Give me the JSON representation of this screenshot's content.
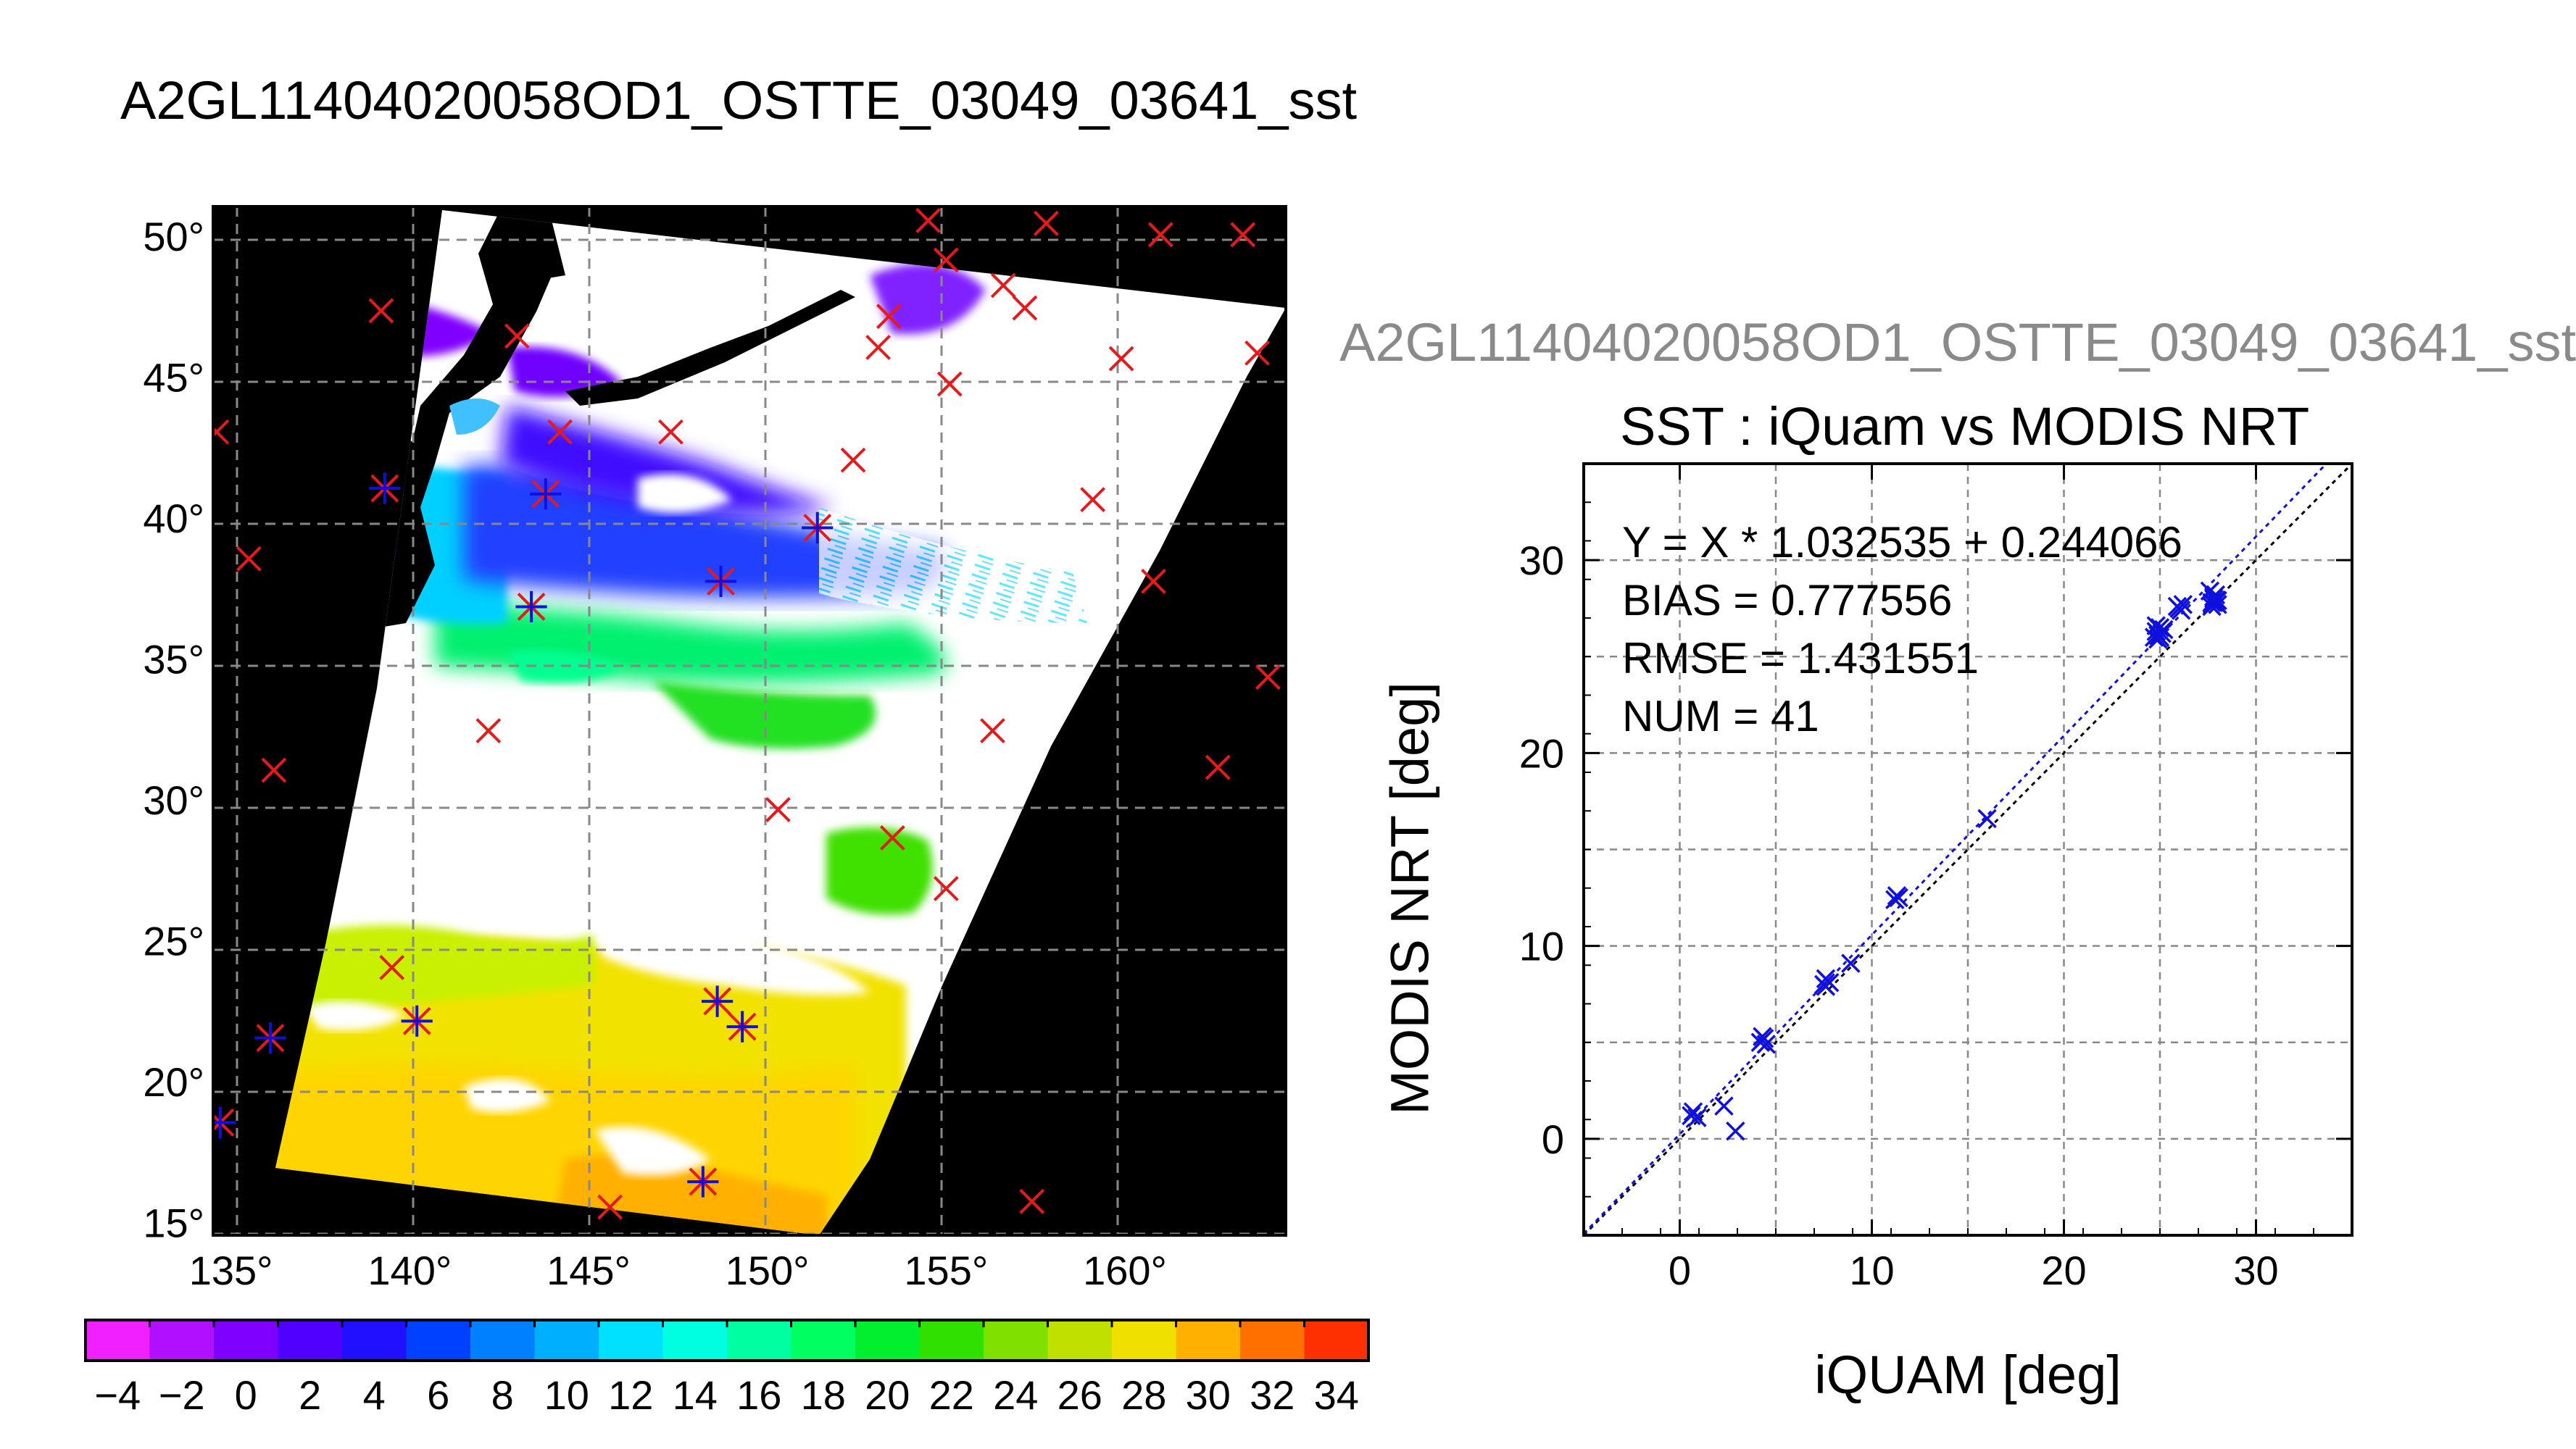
{
  "page_title": "A2GL11404020058OD1_OSTTE_03049_03641_sst",
  "scatter_window_title": "A2GL11404020058OD1_OSTTE_03049_03641_sst",
  "colors": {
    "marker_red": "#e41a1c",
    "marker_blue": "#1010dd",
    "map_background": "#000000",
    "cloud": "#ffffff",
    "grid": "#888888"
  },
  "chart_data": [
    {
      "type": "heatmap",
      "kind": "sst-map",
      "lon_ticks": [
        "135°",
        "140°",
        "145°",
        "150°",
        "155°",
        "160°"
      ],
      "lat_ticks": [
        "15°",
        "20°",
        "25°",
        "30°",
        "35°",
        "40°",
        "45°",
        "50°"
      ],
      "xlim": [
        134.5,
        164.5
      ],
      "ylim": [
        14.5,
        51.0
      ],
      "grid": true,
      "colorbar": {
        "range": [
          -5,
          35
        ],
        "tick_labels": [
          "−4",
          "−2",
          "0",
          "2",
          "4",
          "6",
          "8",
          "10",
          "12",
          "14",
          "16",
          "18",
          "20",
          "22",
          "24",
          "26",
          "28",
          "30",
          "32",
          "34"
        ],
        "tick_values": [
          -4,
          -2,
          0,
          2,
          4,
          6,
          8,
          10,
          12,
          14,
          16,
          18,
          20,
          22,
          24,
          26,
          28,
          30,
          32,
          34
        ],
        "colors": [
          "#f020ff",
          "#b010ff",
          "#8000ff",
          "#5000ff",
          "#2010ff",
          "#0040ff",
          "#0080ff",
          "#00b0ff",
          "#00e0ff",
          "#00ffe0",
          "#00ffa0",
          "#00ff60",
          "#00f030",
          "#30e000",
          "#80e000",
          "#c0e000",
          "#f0e000",
          "#ffb000",
          "#ff7000",
          "#ff3000"
        ]
      },
      "red_x_markers": [
        [
          134.6,
          43.0
        ],
        [
          135.5,
          38.5
        ],
        [
          136.2,
          31.0
        ],
        [
          139.2,
          47.3
        ],
        [
          139.5,
          24.0
        ],
        [
          142.2,
          32.4
        ],
        [
          144.2,
          43.0
        ],
        [
          147.3,
          43.0
        ],
        [
          150.3,
          29.6
        ],
        [
          152.4,
          42.0
        ],
        [
          153.1,
          46.0
        ],
        [
          153.4,
          47.1
        ],
        [
          153.5,
          28.6
        ],
        [
          154.5,
          50.5
        ],
        [
          155.0,
          26.8
        ],
        [
          155.1,
          44.7
        ],
        [
          156.3,
          32.4
        ],
        [
          156.6,
          48.2
        ],
        [
          157.2,
          47.4
        ],
        [
          157.4,
          15.7
        ],
        [
          157.8,
          50.4
        ],
        [
          159.1,
          40.6
        ],
        [
          159.9,
          45.6
        ],
        [
          160.8,
          37.7
        ],
        [
          161.0,
          50.0
        ],
        [
          162.6,
          31.1
        ],
        [
          163.3,
          50.0
        ],
        [
          163.7,
          45.8
        ],
        [
          164.0,
          34.3
        ],
        [
          145.6,
          15.5
        ],
        [
          155.0,
          49.1
        ],
        [
          143.0,
          46.4
        ]
      ],
      "blue_star_markers": [
        [
          134.7,
          18.5
        ],
        [
          136.1,
          21.5
        ],
        [
          139.3,
          41.0
        ],
        [
          140.2,
          22.1
        ],
        [
          143.4,
          36.8
        ],
        [
          143.8,
          40.8
        ],
        [
          148.2,
          16.4
        ],
        [
          148.6,
          22.8
        ],
        [
          148.7,
          37.7
        ],
        [
          149.3,
          21.9
        ],
        [
          151.4,
          39.6
        ]
      ]
    },
    {
      "type": "scatter",
      "title": "SST : iQuam vs MODIS NRT",
      "xlabel": "iQUAM [deg]",
      "ylabel": "MODIS NRT [deg]",
      "xlim": [
        -5,
        35
      ],
      "ylim": [
        -5,
        35
      ],
      "x_ticks": [
        0,
        10,
        20,
        30
      ],
      "y_ticks": [
        0,
        10,
        20,
        30
      ],
      "grid": true,
      "stats": {
        "fit": "Y = X * 1.032535 + 0.244066",
        "bias": "BIAS = 0.777556",
        "rmse": "RMSE = 1.431551",
        "num": "NUM = 41"
      },
      "fit_line": {
        "slope": 1.032535,
        "intercept": 0.244066
      },
      "points": [
        [
          0.6,
          1.2
        ],
        [
          0.7,
          1.4
        ],
        [
          0.9,
          1.1
        ],
        [
          2.3,
          1.7
        ],
        [
          2.9,
          0.4
        ],
        [
          4.2,
          5.0
        ],
        [
          4.4,
          5.2
        ],
        [
          4.5,
          4.9
        ],
        [
          4.3,
          5.3
        ],
        [
          7.5,
          8.0
        ],
        [
          7.6,
          8.3
        ],
        [
          7.8,
          8.1
        ],
        [
          7.6,
          7.9
        ],
        [
          8.9,
          9.1
        ],
        [
          11.2,
          12.4
        ],
        [
          11.3,
          12.6
        ],
        [
          11.4,
          12.5
        ],
        [
          16.0,
          16.6
        ],
        [
          24.7,
          26.0
        ],
        [
          24.8,
          26.3
        ],
        [
          24.9,
          26.1
        ],
        [
          25.0,
          26.5
        ],
        [
          25.1,
          26.2
        ],
        [
          24.9,
          25.9
        ],
        [
          25.2,
          26.4
        ],
        [
          25.0,
          26.0
        ],
        [
          24.8,
          26.6
        ],
        [
          26.0,
          27.5
        ],
        [
          26.2,
          27.7
        ],
        [
          25.9,
          27.6
        ],
        [
          26.1,
          27.4
        ],
        [
          27.7,
          27.8
        ],
        [
          27.8,
          28.1
        ],
        [
          27.9,
          27.9
        ],
        [
          27.6,
          28.4
        ],
        [
          28.0,
          27.7
        ],
        [
          27.8,
          28.0
        ],
        [
          27.7,
          27.6
        ],
        [
          27.9,
          28.2
        ],
        [
          28.0,
          27.9
        ],
        [
          27.8,
          27.8
        ]
      ]
    }
  ]
}
